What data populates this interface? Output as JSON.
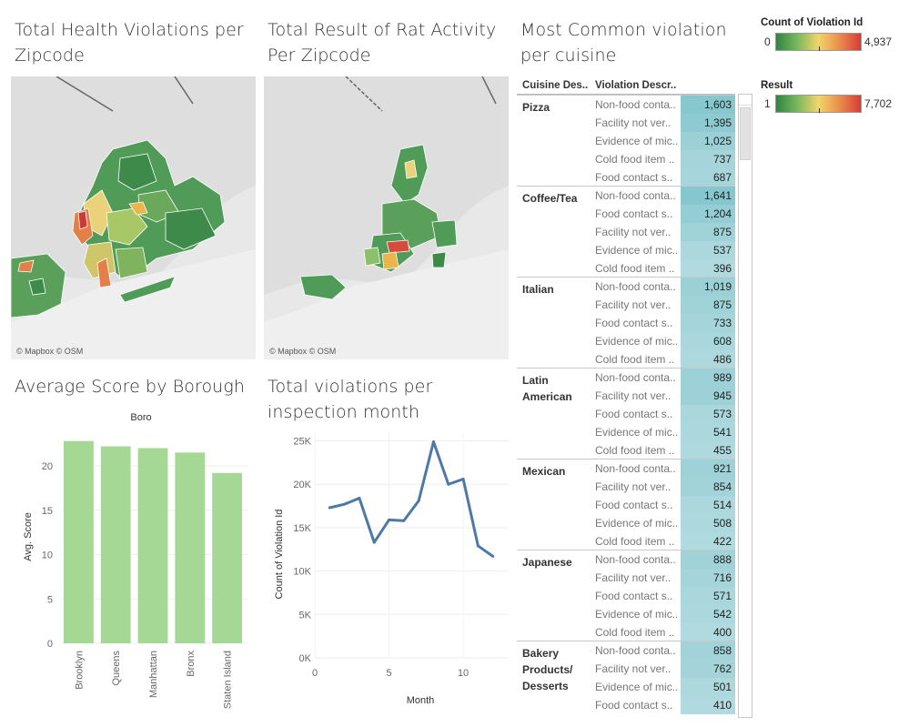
{
  "titles": {
    "violations_zip": "Total Health Violations per Zipcode",
    "rat_zip": "Total Result of Rat Activity Per Zipcode",
    "common_violation": "Most Common violation per cuisine",
    "avg_score": "Average Score by Borough",
    "monthly": "Total violations per inspection month"
  },
  "map_attribution": "© Mapbox © OSM",
  "legends": {
    "violation": {
      "title": "Count of Violation Id",
      "min": "0",
      "max": "4,937"
    },
    "result": {
      "title": "Result",
      "min": "1",
      "max": "7,702"
    }
  },
  "colors": {
    "diverging_low": "#2e8540",
    "diverging_mid": "#f2d56a",
    "diverging_high": "#d73a3a",
    "bar_green": "#a5d895",
    "line_blue": "#4e79a7",
    "table_cell": "#7fc6cf"
  },
  "table": {
    "headers": [
      "Cuisine Des..",
      "Violation Descr.."
    ],
    "groups": [
      {
        "cuisine": "Pizza",
        "rows": [
          {
            "desc": "Non-food conta..",
            "value": "1,603",
            "n": 1603
          },
          {
            "desc": "Facility not ver..",
            "value": "1,395",
            "n": 1395
          },
          {
            "desc": "Evidence of mic..",
            "value": "1,025",
            "n": 1025
          },
          {
            "desc": "Cold food item ..",
            "value": "737",
            "n": 737
          },
          {
            "desc": "Food contact s..",
            "value": "687",
            "n": 687
          }
        ]
      },
      {
        "cuisine": "Coffee/Tea",
        "rows": [
          {
            "desc": "Non-food conta..",
            "value": "1,641",
            "n": 1641
          },
          {
            "desc": "Food contact s..",
            "value": "1,204",
            "n": 1204
          },
          {
            "desc": "Facility not ver..",
            "value": "875",
            "n": 875
          },
          {
            "desc": "Evidence of mic..",
            "value": "537",
            "n": 537
          },
          {
            "desc": "Cold food item ..",
            "value": "396",
            "n": 396
          }
        ]
      },
      {
        "cuisine": "Italian",
        "rows": [
          {
            "desc": "Non-food conta..",
            "value": "1,019",
            "n": 1019
          },
          {
            "desc": "Facility not ver..",
            "value": "875",
            "n": 875
          },
          {
            "desc": "Food contact s..",
            "value": "733",
            "n": 733
          },
          {
            "desc": "Evidence of mic..",
            "value": "608",
            "n": 608
          },
          {
            "desc": "Cold food item ..",
            "value": "486",
            "n": 486
          }
        ]
      },
      {
        "cuisine": "Latin American",
        "rows": [
          {
            "desc": "Non-food conta..",
            "value": "989",
            "n": 989
          },
          {
            "desc": "Facility not ver..",
            "value": "945",
            "n": 945
          },
          {
            "desc": "Food contact s..",
            "value": "573",
            "n": 573
          },
          {
            "desc": "Evidence of mic..",
            "value": "541",
            "n": 541
          },
          {
            "desc": "Cold food item ..",
            "value": "455",
            "n": 455
          }
        ]
      },
      {
        "cuisine": "Mexican",
        "rows": [
          {
            "desc": "Non-food conta..",
            "value": "921",
            "n": 921
          },
          {
            "desc": "Facility not ver..",
            "value": "854",
            "n": 854
          },
          {
            "desc": "Food contact s..",
            "value": "514",
            "n": 514
          },
          {
            "desc": "Evidence of mic..",
            "value": "508",
            "n": 508
          },
          {
            "desc": "Cold food item ..",
            "value": "422",
            "n": 422
          }
        ]
      },
      {
        "cuisine": "Japanese",
        "rows": [
          {
            "desc": "Non-food conta..",
            "value": "888",
            "n": 888
          },
          {
            "desc": "Facility not ver..",
            "value": "716",
            "n": 716
          },
          {
            "desc": "Food contact s..",
            "value": "571",
            "n": 571
          },
          {
            "desc": "Evidence of mic..",
            "value": "542",
            "n": 542
          },
          {
            "desc": "Cold food item ..",
            "value": "400",
            "n": 400
          }
        ]
      },
      {
        "cuisine": "Bakery Products/ Desserts",
        "rows": [
          {
            "desc": "Non-food conta..",
            "value": "858",
            "n": 858
          },
          {
            "desc": "Facility not ver..",
            "value": "762",
            "n": 762
          },
          {
            "desc": "Evidence of mic..",
            "value": "501",
            "n": 501
          },
          {
            "desc": "Food contact s..",
            "value": "410",
            "n": 410
          }
        ]
      }
    ]
  },
  "chart_data": [
    {
      "type": "bar",
      "title": "Average Score by Borough",
      "header": "Boro",
      "categories": [
        "Brooklyn",
        "Queens",
        "Manhattan",
        "Bronx",
        "Staten Island"
      ],
      "values": [
        22.8,
        22.2,
        22.0,
        21.5,
        19.2
      ],
      "ylabel": "Avg. Score",
      "xlabel": "",
      "yticks": [
        0,
        5,
        10,
        15,
        20
      ],
      "ylim": [
        0,
        24
      ],
      "grid": true
    },
    {
      "type": "line",
      "title": "Total violations per inspection month",
      "x": [
        1,
        2,
        3,
        4,
        5,
        6,
        7,
        8,
        9,
        10,
        11,
        12
      ],
      "y": [
        17300,
        17700,
        18400,
        13300,
        15900,
        15800,
        18100,
        24900,
        20000,
        20600,
        12900,
        11700
      ],
      "xlabel": "Month",
      "ylabel": "Count of Violation Id",
      "xticks": [
        0,
        5,
        10
      ],
      "yticks": [
        "0K",
        "5K",
        "10K",
        "15K",
        "20K",
        "25K"
      ],
      "xlim": [
        0,
        13
      ],
      "ylim": [
        0,
        26000
      ],
      "grid": true
    }
  ]
}
